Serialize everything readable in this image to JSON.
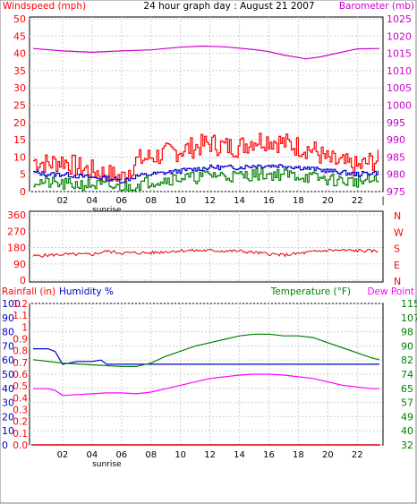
{
  "chart_data": [
    {
      "type": "line",
      "title": "24 hour graph day : August 21 2007",
      "ylabel_left": "Windspeed (mph)",
      "ylabel_right": "Barometer (mb)",
      "x_ticks": [
        "02",
        "04",
        "06",
        "08",
        "10",
        "12",
        "14",
        "16",
        "18",
        "20",
        "22"
      ],
      "x_note": "sunrise",
      "ylim_left": [
        0,
        50
      ],
      "ylim_right": [
        975,
        1025
      ],
      "yticks_left": [
        "0",
        "5",
        "10",
        "15",
        "20",
        "25",
        "30",
        "35",
        "40",
        "45",
        "50"
      ],
      "yticks_right": [
        "975",
        "980",
        "985",
        "990",
        "995",
        "1000",
        "1005",
        "1010",
        "1015",
        "1020",
        "1025"
      ],
      "grid": true,
      "series": [
        {
          "axis": "right",
          "color": "#cc00cc",
          "x": [
            0,
            2,
            4,
            6,
            8,
            10,
            11.5,
            13,
            15,
            16,
            17,
            18,
            18.5,
            19.5,
            21,
            22,
            23.5
          ],
          "y": [
            1016.4,
            1015.7,
            1015.3,
            1015.7,
            1016.0,
            1016.8,
            1017.1,
            1016.9,
            1016.1,
            1015.5,
            1014.5,
            1013.8,
            1013.4,
            1014.0,
            1015.4,
            1016.3,
            1016.4
          ]
        },
        {
          "axis": "left",
          "color": "#ff0000",
          "x": [
            0,
            1,
            2,
            3,
            4,
            5,
            6,
            7,
            8,
            9,
            10,
            11,
            12,
            13,
            14,
            15,
            16,
            17,
            18,
            19,
            20,
            21,
            22,
            23,
            23.5
          ],
          "y": [
            9,
            8,
            9,
            7,
            6,
            5,
            4,
            9,
            10,
            11,
            12,
            13,
            14,
            13,
            13,
            15,
            15,
            14,
            13,
            12,
            9,
            8,
            7,
            9,
            9
          ]
        },
        {
          "axis": "left",
          "color": "#0000cc",
          "x": [
            0,
            1,
            2,
            3,
            4,
            5,
            6,
            7,
            8,
            9,
            10,
            11,
            12,
            13,
            14,
            15,
            16,
            17,
            18,
            19,
            20,
            21,
            22,
            23,
            23.5
          ],
          "y": [
            5.5,
            5,
            5,
            4.5,
            4,
            4,
            3,
            4.5,
            5,
            5.5,
            6,
            6.5,
            7,
            7,
            7,
            7.5,
            7.5,
            7.5,
            7,
            6.5,
            6,
            5.5,
            5,
            5.5,
            5.5
          ]
        },
        {
          "axis": "left",
          "color": "#008000",
          "x": [
            0,
            1,
            2,
            3,
            4,
            5,
            6,
            7,
            8,
            9,
            10,
            11,
            12,
            13,
            14,
            15,
            16,
            17,
            18,
            19,
            20,
            21,
            22,
            23,
            23.5
          ],
          "y": [
            3,
            2.5,
            2,
            2,
            2,
            1.5,
            1,
            2,
            3,
            3.5,
            4,
            4,
            5,
            4.5,
            4.5,
            5,
            5,
            5,
            4.5,
            4,
            3.5,
            3,
            3,
            3,
            3
          ]
        }
      ]
    },
    {
      "type": "line",
      "ylabel_right": [
        "N",
        "W",
        "S",
        "E",
        "N"
      ],
      "ylim": [
        0,
        360
      ],
      "yticks": [
        "0",
        "90",
        "180",
        "270",
        "360"
      ],
      "x_ticks": [],
      "grid": true,
      "series": [
        {
          "color": "#dd0000",
          "x": [
            0,
            2,
            4,
            5,
            6,
            8,
            10,
            12,
            14,
            16,
            17,
            18,
            20,
            22,
            23.5
          ],
          "y": [
            133,
            142,
            142,
            160,
            150,
            151,
            163,
            163,
            160,
            145,
            138,
            147,
            165,
            163,
            160
          ]
        }
      ]
    },
    {
      "type": "line",
      "ylabel_left_1": "Rainfall (in)",
      "ylabel_left_2": "Humidity %",
      "ylabel_right_1": "Temperature (°F)",
      "ylabel_right_2": "Dew Point",
      "x_ticks": [
        "02",
        "04",
        "06",
        "08",
        "10",
        "12",
        "14",
        "16",
        "18",
        "20",
        "22"
      ],
      "x_note": "sunrise",
      "ylim_rain": [
        0,
        1.2
      ],
      "yticks_rain": [
        "0.0",
        "0.1",
        "0.2",
        "0.3",
        "0.4",
        "0.5",
        "0.6",
        "0.7",
        "0.8",
        "0.9",
        "1",
        "1.1",
        "1.2"
      ],
      "ylim_humidity": [
        0,
        100
      ],
      "yticks_humidity": [
        "0",
        "10",
        "20",
        "30",
        "40",
        "50",
        "60",
        "70",
        "80",
        "90",
        "100"
      ],
      "ylim_temp": [
        32,
        115
      ],
      "yticks_temp": [
        "32",
        "40",
        "49",
        "57",
        "65",
        "74",
        "82",
        "90",
        "98",
        "107",
        "115"
      ],
      "grid": true,
      "series": [
        {
          "name": "Temperature (°F)",
          "color": "#008000",
          "axis": "temp",
          "x": [
            0,
            2,
            4,
            6,
            7,
            8,
            9,
            10,
            11,
            12,
            13,
            14,
            15,
            16,
            17,
            18,
            19,
            20,
            21,
            22,
            23,
            23.5
          ],
          "y": [
            82,
            80,
            79,
            78,
            78,
            80,
            84,
            87,
            90,
            92,
            94,
            96,
            97,
            97,
            96,
            96,
            95,
            92,
            89,
            86,
            83,
            82
          ]
        },
        {
          "name": "Humidity %",
          "color": "#0000cc",
          "axis": "humidity",
          "x": [
            0,
            1,
            1.5,
            2,
            3,
            4,
            4.6,
            5,
            23.5
          ],
          "y": [
            68,
            68,
            66,
            57,
            59,
            59,
            60,
            57,
            57
          ]
        },
        {
          "name": "Dew Point",
          "color": "#ff00ff",
          "axis": "temp",
          "x": [
            0,
            1,
            1.5,
            2,
            3,
            4,
            5,
            6,
            7,
            8,
            9,
            10,
            11,
            12,
            13,
            14,
            15,
            16,
            17,
            18,
            19,
            20,
            21,
            22,
            23,
            23.5
          ],
          "y": [
            65,
            65,
            64,
            61,
            61.5,
            62,
            62.5,
            62.5,
            62,
            63,
            65,
            67,
            69,
            71,
            72,
            73,
            73.5,
            73.5,
            73,
            72,
            71,
            69,
            67,
            66,
            65,
            65
          ]
        },
        {
          "name": "Rainfall (in)",
          "color": "#dd0000",
          "axis": "rain",
          "x": [
            0,
            23.5
          ],
          "y": [
            0,
            0
          ]
        }
      ]
    }
  ],
  "colors": {
    "wind_label": "#ff0000",
    "baro_label": "#cc00cc",
    "humidity_label": "#0000cc",
    "temp_label": "#008000",
    "dew_label": "#ff00ff"
  }
}
